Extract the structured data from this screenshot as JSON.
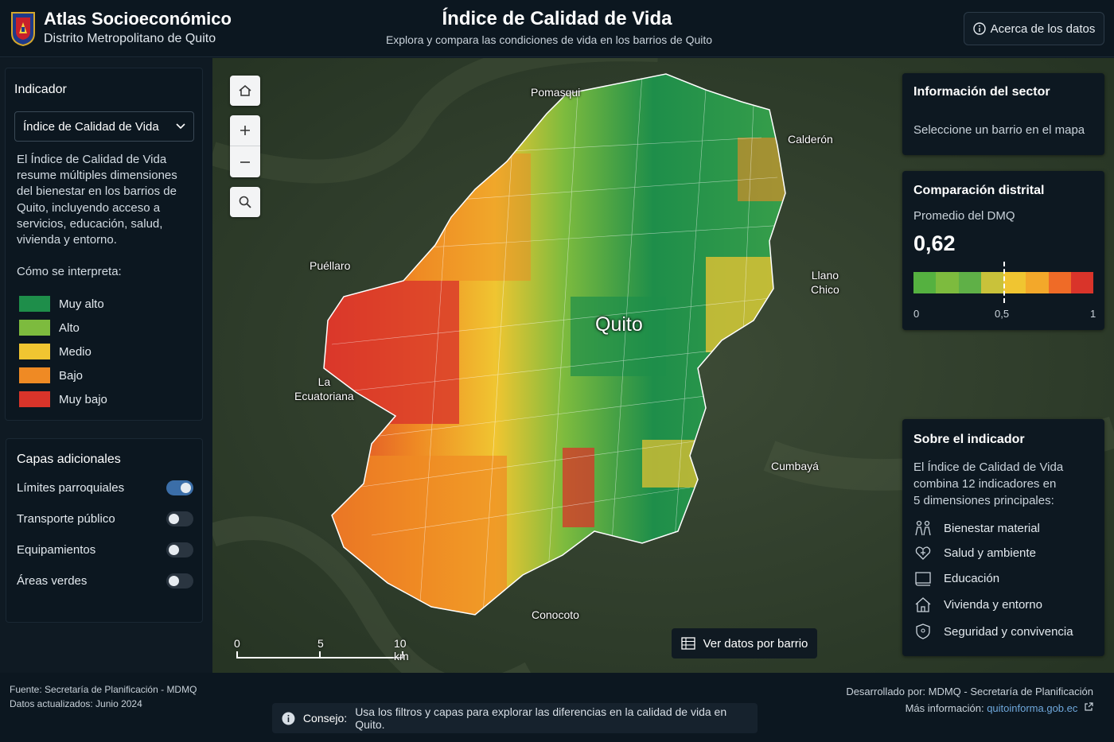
{
  "header": {
    "brand_title": "Atlas Socioeconómico",
    "brand_subtitle": "Distrito Metropolitano de Quito",
    "page_title": "Índice de Calidad de Vida",
    "page_subtitle": "Explora y compara las condiciones de vida en los barrios de Quito",
    "about_button": "Acerca de los datos"
  },
  "indicator_panel": {
    "heading": "Indicador",
    "selected": "Índice de Calidad de Vida",
    "description": "El Índice de Calidad de Vida resume múltiples dimensiones del bienestar en los barrios de Quito, incluyendo acceso a servicios, educación, salud, vivienda y entorno.",
    "interpret_label": "Cómo se interpreta:",
    "legend": [
      {
        "label": "Muy alto",
        "color": "#1e8e4a"
      },
      {
        "label": "Alto",
        "color": "#7dbb3e"
      },
      {
        "label": "Medio",
        "color": "#f0c531"
      },
      {
        "label": "Bajo",
        "color": "#ef8a24"
      },
      {
        "label": "Muy bajo",
        "color": "#d9342a"
      }
    ]
  },
  "layers_panel": {
    "heading": "Capas adicionales",
    "layers": [
      {
        "label": "Límites parroquiales",
        "on": true
      },
      {
        "label": "Transporte público",
        "on": false
      },
      {
        "label": "Equipamientos",
        "on": false
      },
      {
        "label": "Áreas verdes",
        "on": false
      }
    ]
  },
  "map": {
    "city_label": "Quito",
    "places": {
      "pomasqui": "Pomasqui",
      "calderon": "Calderón",
      "puellaro": "Puéllaro",
      "llano_chico_1": "Llano",
      "llano_chico_2": "Chico",
      "la_ecuatoriana_1": "La",
      "la_ecuatoriana_2": "Ecuatoriana",
      "cumbaya": "Cumbayá",
      "conocoto": "Conocoto"
    },
    "scale": {
      "s0": "0",
      "s5": "5",
      "s10": "10 km"
    },
    "data_button": "Ver datos por barrio"
  },
  "sector_info": {
    "heading": "Información del sector",
    "placeholder": "Seleccione un barrio en el mapa"
  },
  "comparison": {
    "heading": "Comparación distrital",
    "avg_label": "Promedio del DMQ",
    "avg_value": "0,62",
    "avg_numeric": 0.62,
    "scale_colors": [
      "#55b140",
      "#7dbb3e",
      "#5fb047",
      "#c9c23a",
      "#f0c531",
      "#f3a82a",
      "#ef6b27",
      "#d9342a"
    ],
    "ticks": {
      "t0": "0",
      "t05": "0,5",
      "t1": "1"
    }
  },
  "about_indicator": {
    "heading": "Sobre el indicador",
    "text_1": "El Índice de Calidad de Vida",
    "text_2": "combina 12 indicadores en",
    "text_3": "5 dimensiones principales:",
    "dimensions": [
      {
        "label": "Bienestar material",
        "icon": "people-icon"
      },
      {
        "label": "Salud y ambiente",
        "icon": "health-heart-icon"
      },
      {
        "label": "Educación",
        "icon": "book-icon"
      },
      {
        "label": "Vivienda y entorno",
        "icon": "house-icon"
      },
      {
        "label": "Seguridad y convivencia",
        "icon": "shield-icon"
      }
    ]
  },
  "footer": {
    "source": "Fuente: Secretaría de Planificación - MDMQ",
    "updated": "Datos actualizados: Junio 2024",
    "developed": "Desarrollado por: MDMQ - Secretaría de Planificación",
    "more_info": "Más información:",
    "link": "quitoinforma.gob.ec",
    "tip_label": "Consejo:",
    "tip_text": "Usa los filtros y capas para explorar las diferencias en la calidad de vida en Quito."
  }
}
